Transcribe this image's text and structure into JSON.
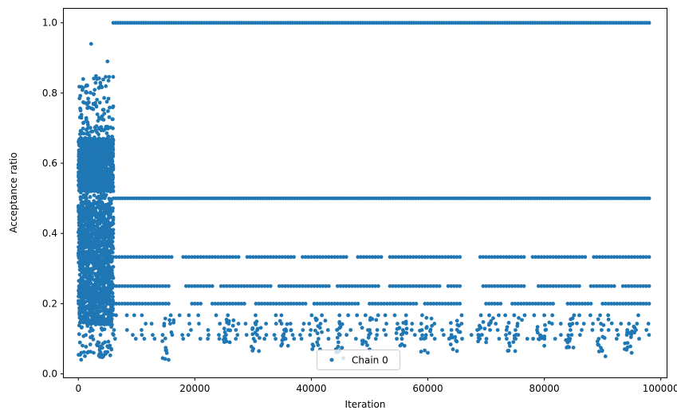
{
  "chart_data": {
    "type": "scatter",
    "xlabel": "Iteration",
    "ylabel": "Acceptance ratio",
    "xlim": [
      -2500,
      101000
    ],
    "ylim": [
      -0.01,
      1.04
    ],
    "xticks": [
      0,
      20000,
      40000,
      60000,
      80000,
      100000
    ],
    "xtick_labels": [
      "0",
      "20000",
      "40000",
      "60000",
      "80000",
      "100000"
    ],
    "yticks": [
      0.0,
      0.2,
      0.4,
      0.6,
      0.8,
      1.0
    ],
    "ytick_labels": [
      "0.0",
      "0.2",
      "0.4",
      "0.6",
      "0.8",
      "1.0"
    ],
    "grid": false,
    "legend_position": "bottom-center",
    "series": [
      {
        "name": "Chain 0",
        "color": "#1f77b4",
        "marker": "dot",
        "x_range": [
          0,
          98000
        ],
        "burn_in": {
          "x_range": [
            0,
            6000
          ],
          "dense_bands": [
            [
              0.52,
              0.67
            ],
            [
              0.14,
              0.49
            ]
          ],
          "sparse_range": [
            0.04,
            0.85
          ],
          "outliers": [
            {
              "x": 2200,
              "y": 0.94
            },
            {
              "x": 5000,
              "y": 0.89
            },
            {
              "x": 4300,
              "y": 0.05
            },
            {
              "x": 500,
              "y": 0.06
            }
          ]
        },
        "bands": [
          {
            "y": 1.0,
            "x_range": [
              6000,
              98000
            ],
            "density": "continuous"
          },
          {
            "y": 0.5,
            "x_range": [
              6000,
              98000
            ],
            "density": "continuous"
          },
          {
            "y": 0.333,
            "x_range": [
              6000,
              98000
            ],
            "density": "segmented"
          },
          {
            "y": 0.25,
            "x_range": [
              6000,
              98000
            ],
            "density": "segmented"
          },
          {
            "y": 0.2,
            "x_range": [
              6000,
              98000
            ],
            "density": "segmented"
          },
          {
            "y": 0.167,
            "x_range": [
              6000,
              98000
            ],
            "density": "sparse"
          },
          {
            "y": 0.143,
            "x_range": [
              6000,
              98000
            ],
            "density": "sparse"
          },
          {
            "y": 0.125,
            "x_range": [
              6000,
              98000
            ],
            "density": "sparse"
          },
          {
            "y": 0.111,
            "x_range": [
              6000,
              98000
            ],
            "density": "sparse"
          },
          {
            "y": 0.1,
            "x_range": [
              6000,
              98000
            ],
            "density": "sparse"
          }
        ],
        "dips": [
          {
            "x": 15500,
            "y_min": 0.04
          },
          {
            "x": 26000,
            "y_min": 0.09
          },
          {
            "x": 31000,
            "y_min": 0.065
          },
          {
            "x": 36000,
            "y_min": 0.08
          },
          {
            "x": 41500,
            "y_min": 0.07
          },
          {
            "x": 45500,
            "y_min": 0.045
          },
          {
            "x": 50000,
            "y_min": 0.07
          },
          {
            "x": 56000,
            "y_min": 0.08
          },
          {
            "x": 60000,
            "y_min": 0.06
          },
          {
            "x": 65000,
            "y_min": 0.065
          },
          {
            "x": 70000,
            "y_min": 0.09
          },
          {
            "x": 75000,
            "y_min": 0.065
          },
          {
            "x": 80000,
            "y_min": 0.08
          },
          {
            "x": 85000,
            "y_min": 0.075
          },
          {
            "x": 90500,
            "y_min": 0.05
          },
          {
            "x": 95000,
            "y_min": 0.06
          }
        ],
        "gaps": [
          {
            "y": 0.333,
            "ranges": [
              [
                16500,
                17500
              ],
              [
                28000,
                28800
              ],
              [
                37500,
                38300
              ],
              [
                46500,
                47500
              ],
              [
                52500,
                53200
              ],
              [
                66000,
                68500
              ],
              [
                77000,
                77800
              ],
              [
                87500,
                88200
              ]
            ]
          },
          {
            "y": 0.25,
            "ranges": [
              [
                16000,
                18000
              ],
              [
                23500,
                24200
              ],
              [
                33500,
                34200
              ],
              [
                43500,
                44200
              ],
              [
                51800,
                53000
              ],
              [
                62500,
                63200
              ],
              [
                66000,
                69000
              ],
              [
                77000,
                78500
              ],
              [
                86500,
                87500
              ],
              [
                92500,
                93300
              ]
            ]
          },
          {
            "y": 0.2,
            "ranges": [
              [
                16000,
                19000
              ],
              [
                21500,
                22500
              ],
              [
                29000,
                30200
              ],
              [
                39500,
                40200
              ],
              [
                48500,
                49800
              ],
              [
                58500,
                59200
              ],
              [
                66000,
                69500
              ],
              [
                73000,
                74000
              ],
              [
                82000,
                83500
              ],
              [
                88500,
                89500
              ]
            ]
          }
        ]
      }
    ]
  }
}
